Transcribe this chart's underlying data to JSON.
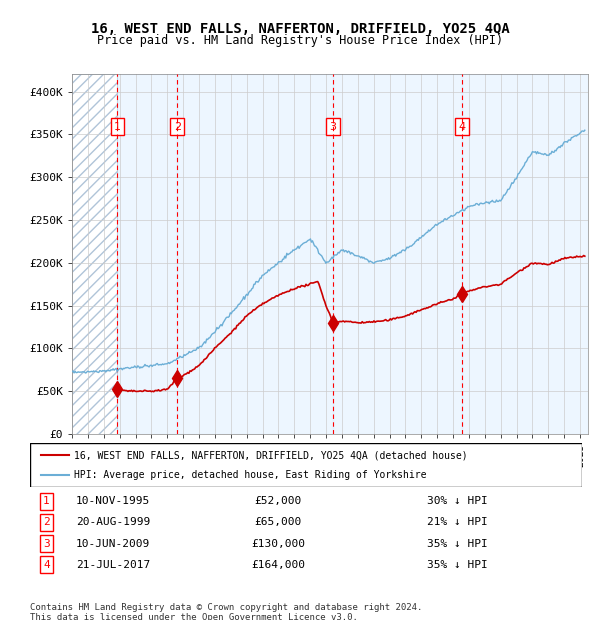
{
  "title": "16, WEST END FALLS, NAFFERTON, DRIFFIELD, YO25 4QA",
  "subtitle": "Price paid vs. HM Land Registry's House Price Index (HPI)",
  "legend_line1": "16, WEST END FALLS, NAFFERTON, DRIFFIELD, YO25 4QA (detached house)",
  "legend_line2": "HPI: Average price, detached house, East Riding of Yorkshire",
  "footer1": "Contains HM Land Registry data © Crown copyright and database right 2024.",
  "footer2": "This data is licensed under the Open Government Licence v3.0.",
  "hpi_color": "#6baed6",
  "price_color": "#cc0000",
  "hatch_color": "#d0d8e8",
  "bg_color": "#ddeeff",
  "transactions": [
    {
      "num": 1,
      "date": "10-NOV-1995",
      "price": 52000,
      "pct": "30%",
      "dir": "↓",
      "year_x": 1995.86
    },
    {
      "num": 2,
      "date": "20-AUG-1999",
      "price": 65000,
      "pct": "21%",
      "dir": "↓",
      "year_x": 1999.63
    },
    {
      "num": 3,
      "date": "10-JUN-2009",
      "price": 130000,
      "pct": "35%",
      "dir": "↓",
      "year_x": 2009.44
    },
    {
      "num": 4,
      "date": "21-JUL-2017",
      "price": 164000,
      "pct": "35%",
      "dir": "↓",
      "year_x": 2017.55
    }
  ],
  "ylim": [
    0,
    420000
  ],
  "xlim_start": 1993.0,
  "xlim_end": 2025.5
}
